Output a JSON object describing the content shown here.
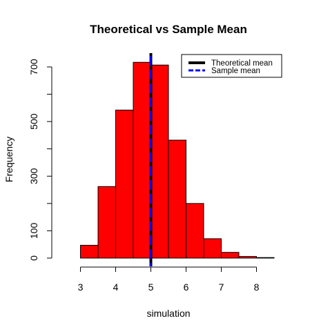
{
  "chart_data": {
    "type": "bar",
    "title": "Theoretical vs Sample Mean",
    "xlabel": "simulation",
    "ylabel": "Frequency",
    "xlim": [
      2.5,
      8.5
    ],
    "ylim": [
      0,
      740
    ],
    "bins": [
      {
        "x0": 3.0,
        "x1": 3.5,
        "value": 47
      },
      {
        "x0": 3.5,
        "x1": 4.0,
        "value": 262
      },
      {
        "x0": 4.0,
        "x1": 4.5,
        "value": 542
      },
      {
        "x0": 4.5,
        "x1": 5.0,
        "value": 717
      },
      {
        "x0": 5.0,
        "x1": 5.5,
        "value": 707
      },
      {
        "x0": 5.5,
        "x1": 6.0,
        "value": 432
      },
      {
        "x0": 6.0,
        "x1": 6.5,
        "value": 200
      },
      {
        "x0": 6.5,
        "x1": 7.0,
        "value": 71
      },
      {
        "x0": 7.0,
        "x1": 7.5,
        "value": 21
      },
      {
        "x0": 7.5,
        "x1": 8.0,
        "value": 6
      },
      {
        "x0": 8.0,
        "x1": 8.5,
        "value": 2
      }
    ],
    "xticks": [
      "3",
      "4",
      "5",
      "6",
      "7",
      "8"
    ],
    "yticks": [
      "0",
      "100",
      "300",
      "500",
      "700"
    ],
    "reference_lines": [
      {
        "name": "Theoretical mean",
        "x": 5.0,
        "color": "#000000",
        "style": "solid"
      },
      {
        "name": "Sample mean",
        "x": 4.99,
        "color": "#0000ff",
        "style": "dashed"
      }
    ],
    "legend": {
      "position": "top-right",
      "entries": [
        "Theoretical mean",
        "Sample mean"
      ]
    },
    "colors": {
      "bar_fill": "#ff0000",
      "bar_border": "#000000"
    }
  }
}
